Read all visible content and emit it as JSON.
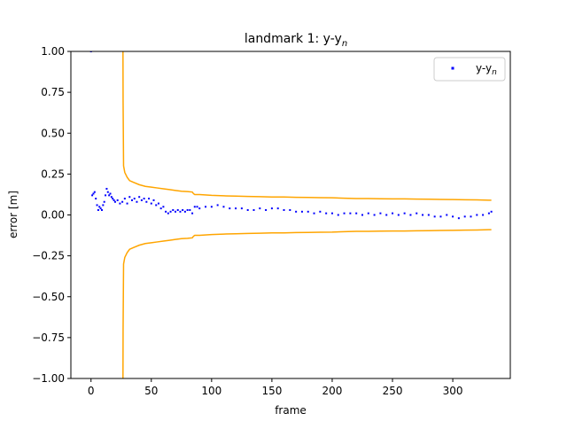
{
  "chart_data": {
    "type": "scatter",
    "title": "landmark 1: y-y",
    "title_subscript": "n",
    "xlabel": "frame",
    "ylabel": "error [m]",
    "xlim": [
      -16.7,
      347.7
    ],
    "ylim": [
      -1.0,
      1.0
    ],
    "x_ticks": [
      0,
      50,
      100,
      150,
      200,
      250,
      300
    ],
    "y_ticks": [
      -1.0,
      -0.75,
      -0.5,
      -0.25,
      0.0,
      0.25,
      0.5,
      0.75,
      1.0
    ],
    "x_tick_labels": [
      "0",
      "50",
      "100",
      "150",
      "200",
      "250",
      "300"
    ],
    "y_tick_labels": [
      "−1.00",
      "−0.75",
      "−0.50",
      "−0.25",
      "0.00",
      "0.25",
      "0.50",
      "0.75",
      "1.00"
    ],
    "grid": false,
    "legend": {
      "placement": "top-right",
      "entries": [
        "y-y"
      ],
      "entry_subscript": "n"
    },
    "series": [
      {
        "name": "y-y",
        "kind": "scatter",
        "color": "#0000ff",
        "x": [
          0,
          1,
          2,
          3,
          4,
          5,
          6,
          7,
          8,
          9,
          10,
          11,
          12,
          13,
          14,
          15,
          16,
          17,
          18,
          19,
          20,
          22,
          24,
          26,
          28,
          30,
          32,
          34,
          36,
          38,
          40,
          42,
          44,
          46,
          48,
          50,
          52,
          54,
          56,
          58,
          60,
          62,
          64,
          66,
          68,
          70,
          72,
          74,
          76,
          78,
          80,
          82,
          84,
          86,
          88,
          90,
          95,
          100,
          105,
          110,
          115,
          120,
          125,
          130,
          135,
          140,
          145,
          150,
          155,
          160,
          165,
          170,
          175,
          180,
          185,
          190,
          195,
          200,
          205,
          210,
          215,
          220,
          225,
          230,
          235,
          240,
          245,
          250,
          255,
          260,
          265,
          270,
          275,
          280,
          285,
          290,
          295,
          300,
          305,
          310,
          315,
          320,
          325,
          330,
          332
        ],
        "y": [
          1.0,
          0.12,
          0.13,
          0.14,
          0.1,
          0.06,
          0.03,
          0.05,
          0.04,
          0.03,
          0.06,
          0.08,
          0.12,
          0.16,
          0.14,
          0.12,
          0.13,
          0.11,
          0.1,
          0.09,
          0.08,
          0.09,
          0.07,
          0.08,
          0.1,
          0.07,
          0.11,
          0.09,
          0.1,
          0.08,
          0.11,
          0.09,
          0.1,
          0.08,
          0.1,
          0.07,
          0.09,
          0.06,
          0.07,
          0.04,
          0.05,
          0.02,
          0.01,
          0.02,
          0.03,
          0.02,
          0.03,
          0.02,
          0.03,
          0.02,
          0.03,
          0.03,
          0.01,
          0.05,
          0.05,
          0.04,
          0.05,
          0.05,
          0.06,
          0.05,
          0.04,
          0.04,
          0.04,
          0.03,
          0.03,
          0.04,
          0.03,
          0.04,
          0.04,
          0.03,
          0.03,
          0.02,
          0.02,
          0.02,
          0.01,
          0.02,
          0.01,
          0.01,
          0.0,
          0.01,
          0.01,
          0.01,
          0.0,
          0.01,
          0.0,
          0.01,
          0.0,
          0.01,
          0.0,
          0.01,
          0.0,
          0.01,
          0.0,
          0.0,
          -0.01,
          -0.01,
          0.0,
          -0.01,
          -0.02,
          -0.01,
          -0.01,
          0.0,
          0.0,
          0.01,
          0.02
        ]
      },
      {
        "kind": "line",
        "color": "#ffa500",
        "x": [
          26.5,
          26.6,
          27,
          28,
          30,
          32,
          35,
          40,
          45,
          50,
          55,
          60,
          65,
          70,
          75,
          80,
          84,
          85,
          86,
          90,
          100,
          110,
          120,
          130,
          140,
          150,
          160,
          170,
          180,
          190,
          200,
          210,
          220,
          230,
          240,
          250,
          260,
          270,
          280,
          290,
          300,
          310,
          320,
          330,
          332
        ],
        "y": [
          1.0,
          0.7,
          0.3,
          0.26,
          0.23,
          0.21,
          0.2,
          0.185,
          0.175,
          0.17,
          0.165,
          0.16,
          0.155,
          0.15,
          0.145,
          0.143,
          0.14,
          0.13,
          0.125,
          0.125,
          0.12,
          0.117,
          0.115,
          0.113,
          0.112,
          0.11,
          0.11,
          0.108,
          0.107,
          0.106,
          0.105,
          0.102,
          0.1,
          0.1,
          0.099,
          0.098,
          0.098,
          0.097,
          0.096,
          0.095,
          0.094,
          0.093,
          0.092,
          0.09,
          0.09
        ]
      },
      {
        "kind": "line",
        "color": "#ffa500",
        "x": [
          26.5,
          26.6,
          27,
          28,
          30,
          32,
          35,
          40,
          45,
          50,
          55,
          60,
          65,
          70,
          75,
          80,
          84,
          85,
          86,
          90,
          100,
          110,
          120,
          130,
          140,
          150,
          160,
          170,
          180,
          190,
          200,
          210,
          220,
          230,
          240,
          250,
          260,
          270,
          280,
          290,
          300,
          310,
          320,
          330,
          332
        ],
        "y": [
          -1.0,
          -0.7,
          -0.3,
          -0.26,
          -0.23,
          -0.21,
          -0.2,
          -0.185,
          -0.175,
          -0.17,
          -0.165,
          -0.16,
          -0.155,
          -0.15,
          -0.145,
          -0.143,
          -0.14,
          -0.13,
          -0.125,
          -0.125,
          -0.12,
          -0.117,
          -0.115,
          -0.113,
          -0.112,
          -0.11,
          -0.11,
          -0.108,
          -0.107,
          -0.106,
          -0.105,
          -0.102,
          -0.1,
          -0.1,
          -0.099,
          -0.098,
          -0.098,
          -0.097,
          -0.096,
          -0.095,
          -0.094,
          -0.093,
          -0.092,
          -0.09,
          -0.09
        ]
      }
    ]
  }
}
